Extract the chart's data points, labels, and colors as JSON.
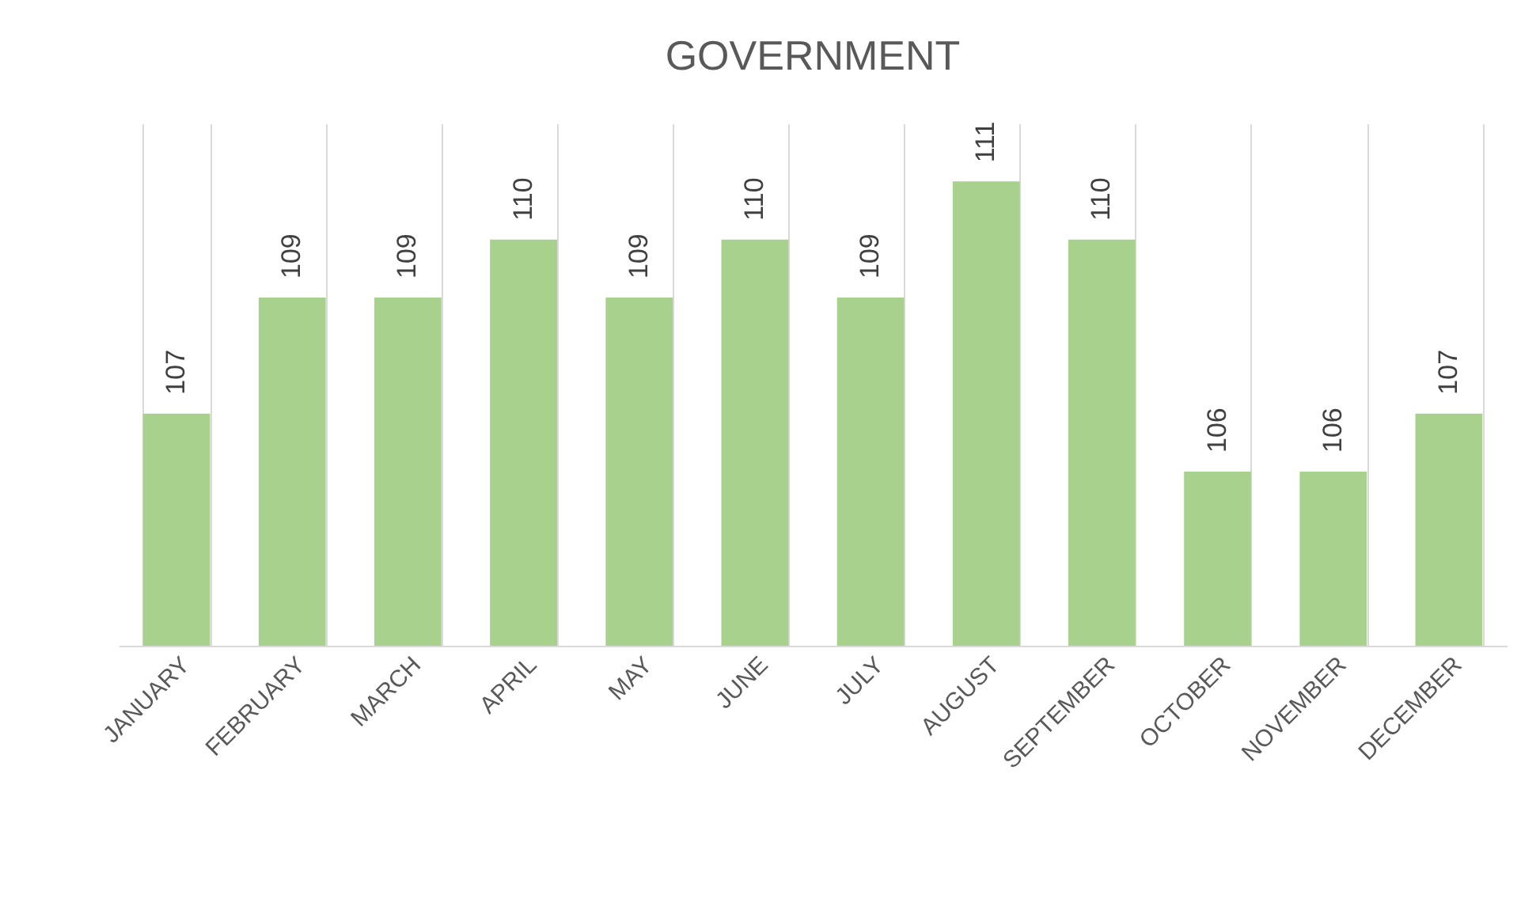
{
  "chart_data": {
    "type": "bar",
    "title": "GOVERNMENT",
    "categories": [
      "JANUARY",
      "FEBRUARY",
      "MARCH",
      "APRIL",
      "MAY",
      "JUNE",
      "JULY",
      "AUGUST",
      "SEPTEMBER",
      "OCTOBER",
      "NOVEMBER",
      "DECEMBER"
    ],
    "values": [
      107,
      109,
      109,
      110,
      109,
      110,
      109,
      111,
      110,
      106,
      106,
      107
    ],
    "color": "#a9d18e",
    "ylim": [
      103,
      112
    ],
    "grid": "x",
    "data_labels": true,
    "tick_labels": "x"
  }
}
